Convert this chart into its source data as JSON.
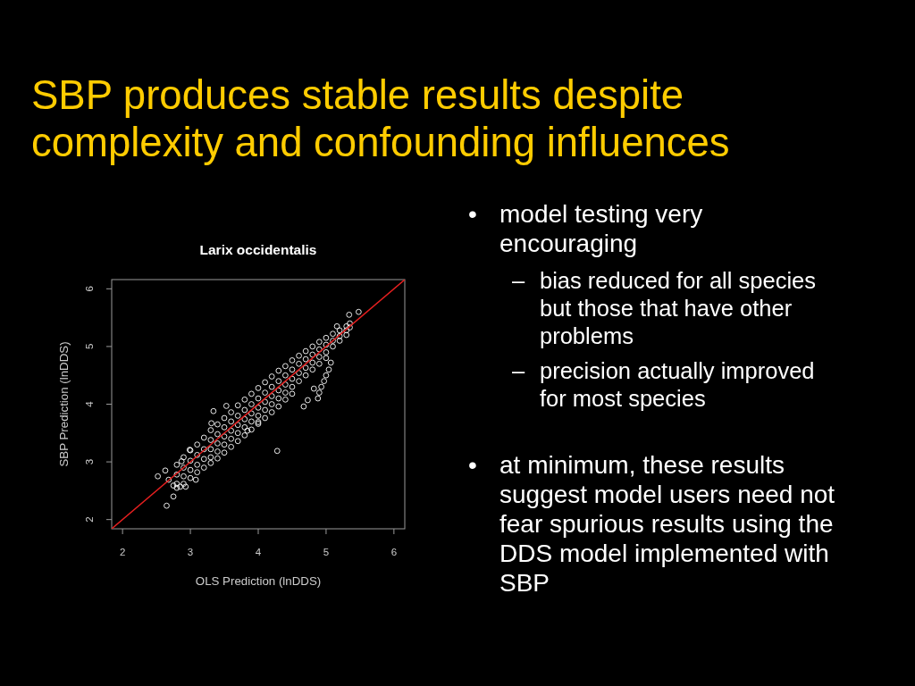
{
  "chart_data": {
    "type": "scatter",
    "title": "SBP produces stable results despite complexity and confounding influences",
    "subtitle": "Larix occidentalis",
    "xlabel": "OLS Prediction (lnDDS)",
    "ylabel": "SBP Prediction (lnDDS)",
    "xlim": [
      1.84,
      6.16
    ],
    "ylim": [
      1.84,
      6.16
    ],
    "xticks": [
      2,
      3,
      4,
      5,
      6
    ],
    "yticks": [
      2,
      3,
      4,
      5,
      6
    ],
    "series": [
      {
        "color": "#ffffff",
        "marker": "circle",
        "x": [
          2.8,
          2.8,
          2.8,
          2.8,
          2.9,
          2.9,
          2.9,
          2.9,
          3,
          3,
          3,
          3,
          3.1,
          3.1,
          3.1,
          3.1,
          3.2,
          3.2,
          3.2,
          3.2,
          3.3,
          3.3,
          3.3,
          3.3,
          3.3,
          3.4,
          3.4,
          3.4,
          3.4,
          3.4,
          3.5,
          3.5,
          3.5,
          3.5,
          3.5,
          3.6,
          3.6,
          3.6,
          3.6,
          3.6,
          3.7,
          3.7,
          3.7,
          3.7,
          3.7,
          3.8,
          3.8,
          3.8,
          3.8,
          3.8,
          3.9,
          3.9,
          3.9,
          3.9,
          3.9,
          4,
          4,
          4,
          4,
          4,
          4.1,
          4.1,
          4.1,
          4.1,
          4.1,
          4.2,
          4.2,
          4.2,
          4.2,
          4.2,
          4.3,
          4.3,
          4.3,
          4.3,
          4.3,
          4.4,
          4.4,
          4.4,
          4.4,
          4.4,
          4.5,
          4.5,
          4.5,
          4.5,
          4.5,
          4.6,
          4.6,
          4.6,
          4.6,
          4.7,
          4.7,
          4.7,
          4.7,
          4.8,
          4.8,
          4.8,
          4.8,
          4.9,
          4.9,
          4.9,
          4.9,
          5,
          5,
          5,
          5,
          5.1,
          5.1,
          5.1,
          5.2,
          5.2,
          5.2,
          5.3,
          5.3,
          5.3,
          5.35,
          5.35,
          5.07,
          5.04,
          5,
          4.97,
          4.93,
          4.9,
          4.88,
          2.52,
          2.63,
          2.65,
          2.75,
          2.68,
          2.75,
          2.85,
          2.93,
          3.08,
          2.87,
          2.99,
          3.34,
          3.53,
          3.31,
          4.28,
          4,
          4.67,
          4.73,
          4.82,
          5.34,
          5.48,
          5.16,
          3.84
        ],
        "values": [
          2.95,
          2.78,
          2.62,
          2.55,
          3.08,
          2.9,
          2.75,
          2.62,
          3.2,
          3.02,
          2.86,
          2.72,
          3.3,
          3.12,
          2.95,
          2.82,
          3.42,
          3.22,
          3.05,
          2.9,
          3.55,
          3.38,
          3.22,
          3.08,
          2.98,
          3.65,
          3.48,
          3.32,
          3.18,
          3.06,
          3.76,
          3.6,
          3.44,
          3.3,
          3.16,
          3.86,
          3.7,
          3.54,
          3.4,
          3.26,
          3.98,
          3.8,
          3.64,
          3.5,
          3.36,
          4.08,
          3.9,
          3.74,
          3.6,
          3.46,
          4.18,
          4,
          3.84,
          3.7,
          3.56,
          4.28,
          4.1,
          3.94,
          3.8,
          3.66,
          4.38,
          4.2,
          4.04,
          3.9,
          3.76,
          4.48,
          4.3,
          4.14,
          4,
          3.86,
          4.58,
          4.4,
          4.24,
          4.1,
          3.96,
          4.66,
          4.5,
          4.34,
          4.2,
          4.08,
          4.76,
          4.6,
          4.44,
          4.3,
          4.18,
          4.84,
          4.7,
          4.54,
          4.4,
          4.92,
          4.78,
          4.63,
          4.5,
          5,
          4.86,
          4.72,
          4.6,
          5.08,
          4.95,
          4.82,
          4.7,
          5.15,
          5.03,
          4.9,
          4.8,
          5.22,
          5.1,
          5,
          5.28,
          5.18,
          5.1,
          5.35,
          5.28,
          5.2,
          5.4,
          5.33,
          4.72,
          4.6,
          4.5,
          4.4,
          4.3,
          4.2,
          4.1,
          2.75,
          2.85,
          2.24,
          2.4,
          2.69,
          2.59,
          2.57,
          2.57,
          2.69,
          3.01,
          3.21,
          3.88,
          3.97,
          3.67,
          3.19,
          3.69,
          3.96,
          4.07,
          4.27,
          5.55,
          5.6,
          5.35,
          3.54
        ]
      },
      {
        "type": "line",
        "color": "#e82020",
        "x": [
          1.84,
          6.16
        ],
        "values": [
          1.84,
          6.16
        ]
      }
    ],
    "annotations": [
      "• model testing very\nencouraging",
      "– bias reduced for all species but those that have other problems",
      "– precision actually improved for most species",
      "• at minimum, these results suggest model users need not fear spurious results using the DDS model implemented with SBP"
    ]
  }
}
